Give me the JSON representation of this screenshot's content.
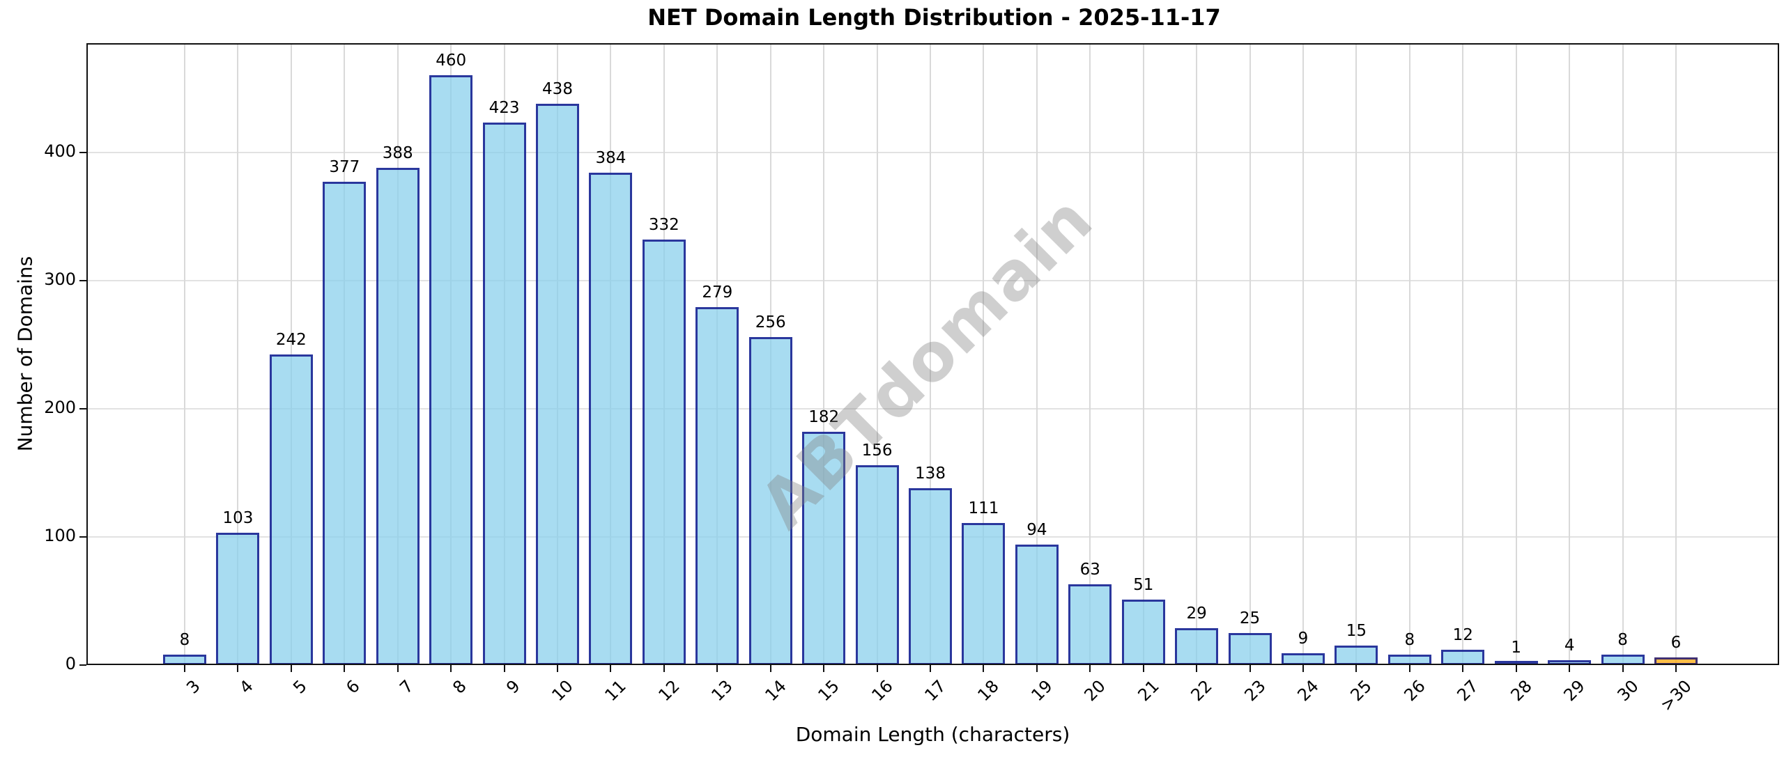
{
  "title": "NET Domain Length Distribution - 2025-11-17",
  "watermark": "ABTdomain",
  "colors": {
    "bar_fill": "#87CEEB",
    "bar_edge": "#000080",
    "highlight_bar_fill": "#FFA500",
    "grid": "#DDDDDD",
    "watermark_gray": "#808080"
  },
  "chart_data": {
    "type": "bar",
    "title": "NET Domain Length Distribution - 2025-11-17",
    "xlabel": "Domain Length (characters)",
    "ylabel": "Number of Domains",
    "categories": [
      "3",
      "4",
      "5",
      "6",
      "7",
      "8",
      "9",
      "10",
      "11",
      "12",
      "13",
      "14",
      "15",
      "16",
      "17",
      "18",
      "19",
      "20",
      "21",
      "22",
      "23",
      "24",
      "25",
      "26",
      "27",
      "28",
      "29",
      "30",
      ">30"
    ],
    "values": [
      8,
      103,
      242,
      377,
      388,
      460,
      423,
      438,
      384,
      332,
      279,
      256,
      182,
      156,
      138,
      111,
      94,
      63,
      51,
      29,
      25,
      9,
      15,
      8,
      12,
      1,
      4,
      8,
      6
    ],
    "bar_labels": [
      "8",
      "103",
      "242",
      "377",
      "388",
      "460",
      "423",
      "438",
      "384",
      "332",
      "279",
      "256",
      "182",
      "156",
      "138",
      "111",
      "94",
      "63",
      "51",
      "29",
      "25",
      "9",
      "15",
      "8",
      "12",
      "1",
      "4",
      "8",
      "6"
    ],
    "yticks": [
      0,
      100,
      200,
      300,
      400
    ],
    "ylim": [
      0,
      485
    ],
    "grid": true,
    "legend": null,
    "highlight_last_bar": true,
    "watermark": "ABTdomain"
  }
}
